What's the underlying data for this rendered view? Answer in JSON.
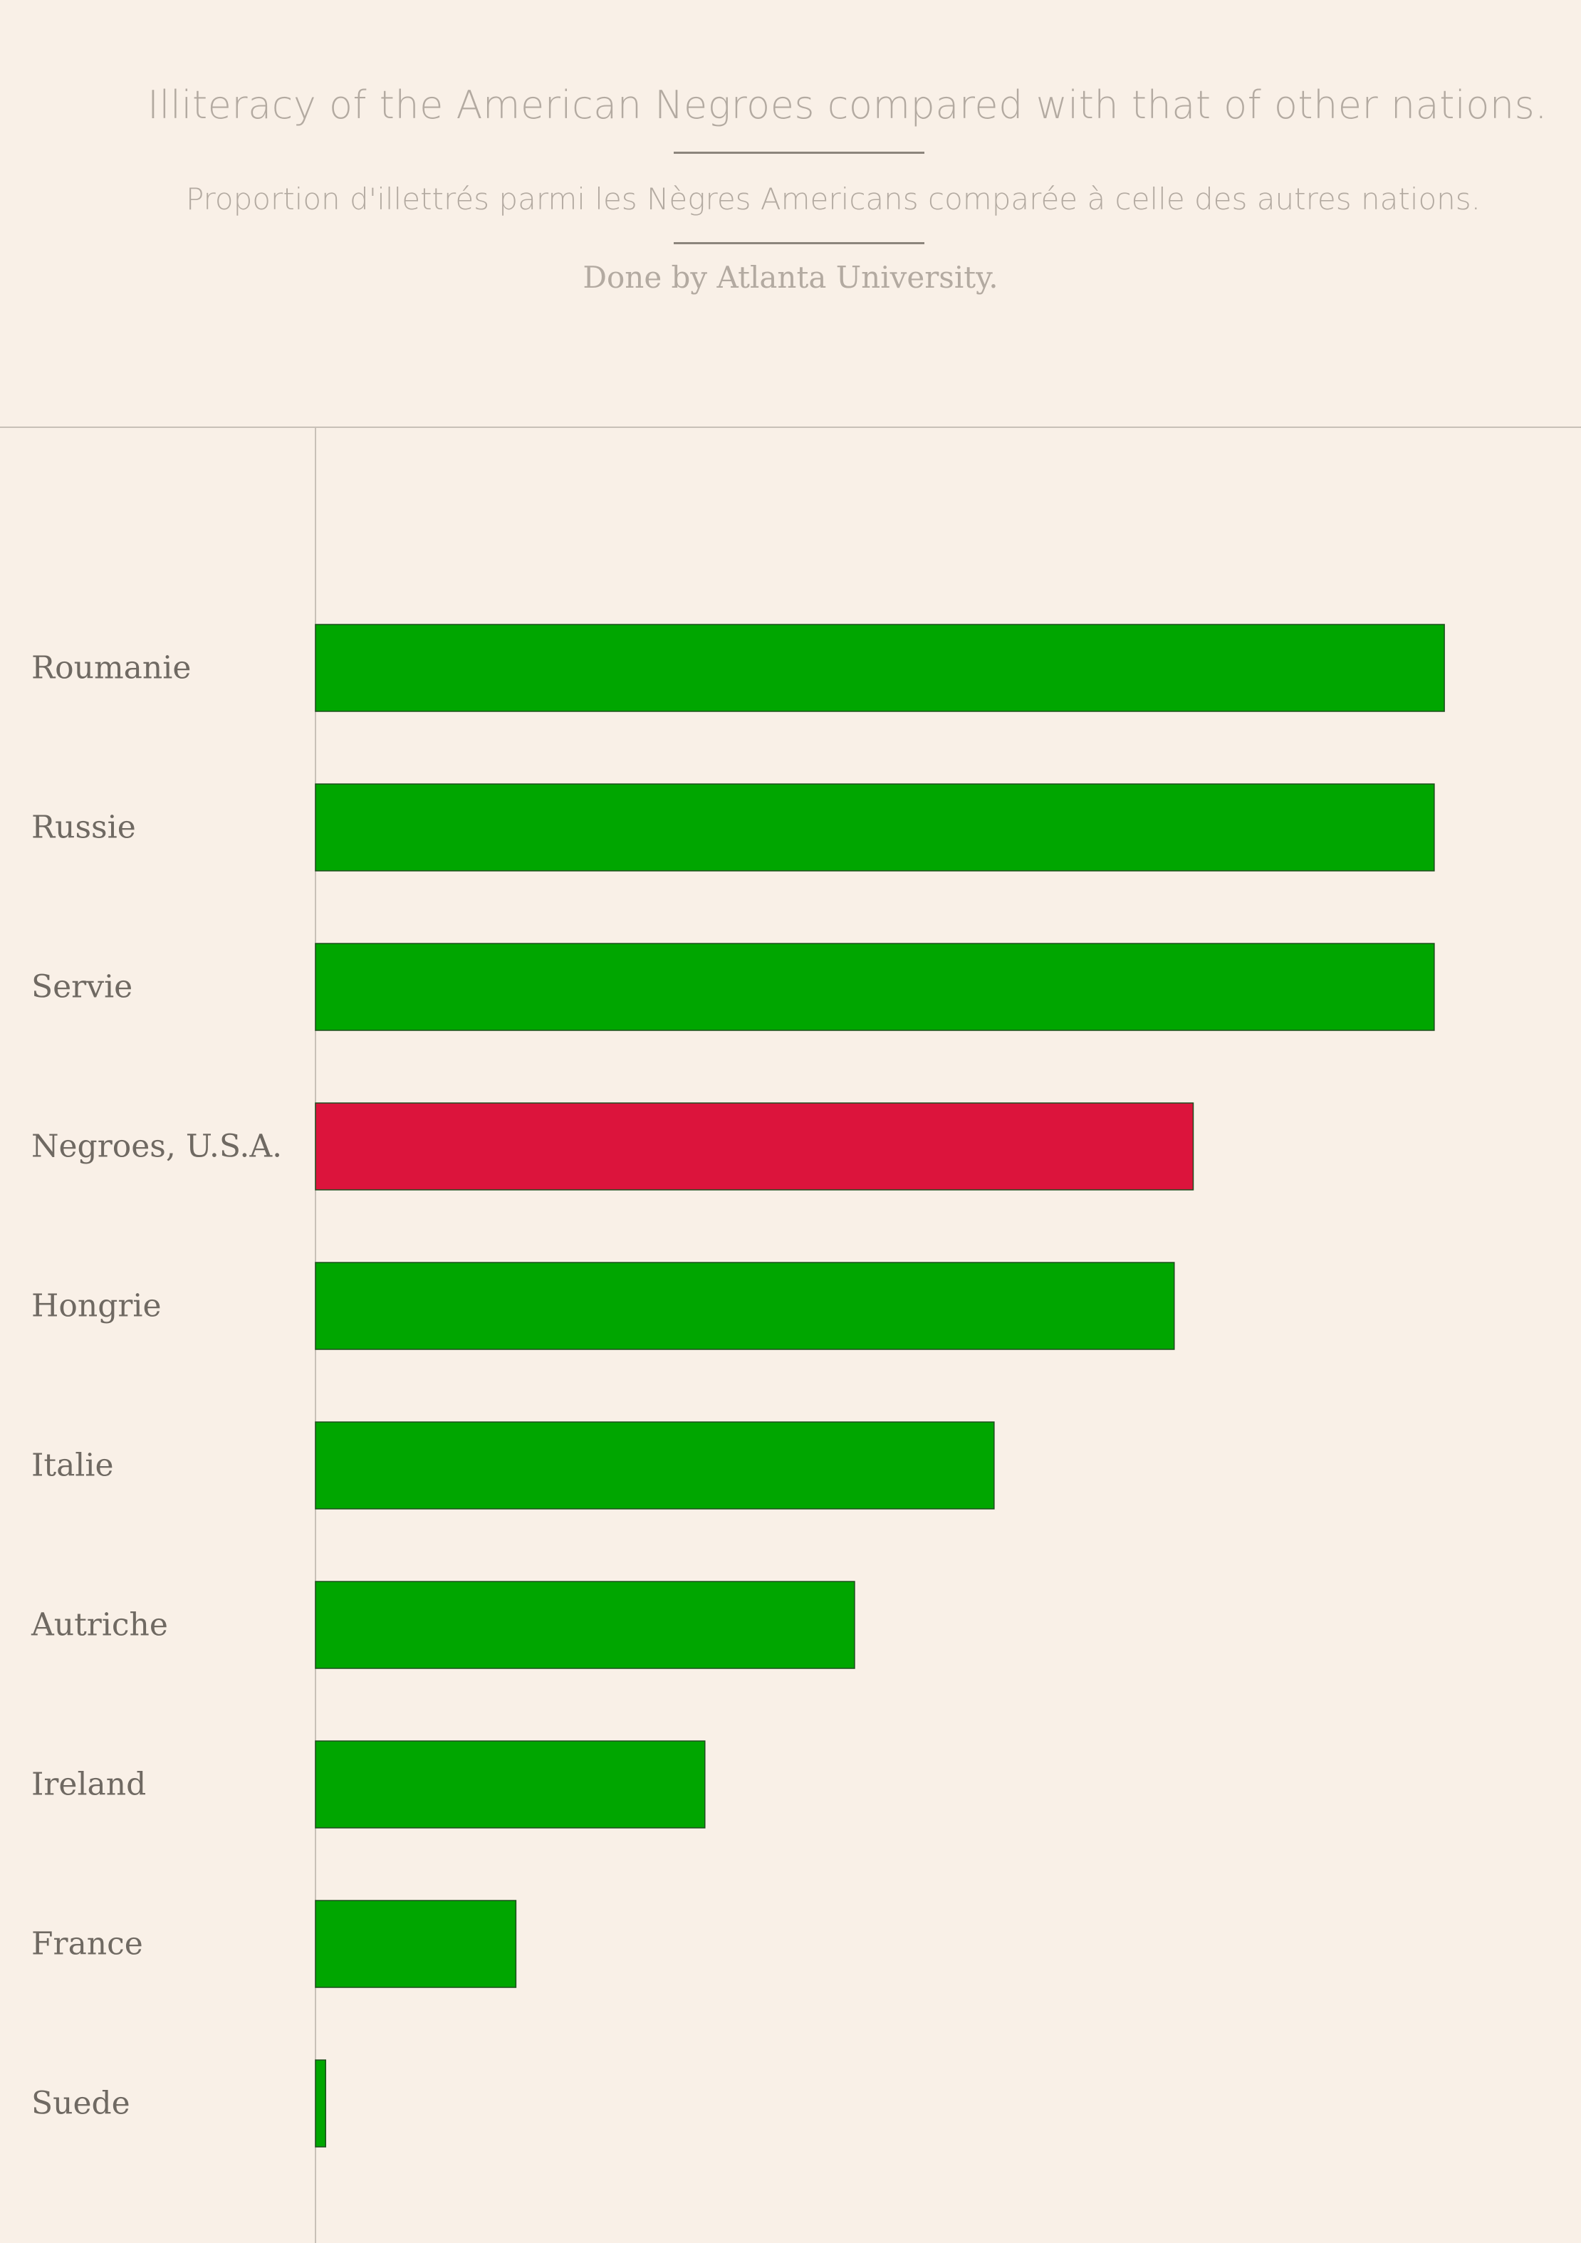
{
  "header": {
    "title": "Illiteracy of the American Negroes compared with that of other nations.",
    "subtitle": "Proportion d'illettrés parmi les Nègres Americans comparée à celle des autres nations.",
    "credit": "Done by Atlanta University."
  },
  "colors": {
    "background": "#f9f0e7",
    "bar_default": "#00a600",
    "bar_highlight": "#dc143c",
    "bar_stroke": "#1f4d1f",
    "text": "#6f6962",
    "title_text": "#b3aaa1"
  },
  "chart_data": {
    "type": "bar",
    "orientation": "horizontal",
    "title": "Illiteracy of the American Negroes compared with that of other nations.",
    "subtitle": "Proportion d'illettrés parmi les Nègres Americans comparée à celle des autres nations.",
    "xlabel": "",
    "ylabel": "",
    "xlim": [
      0,
      95
    ],
    "grid": false,
    "legend": "none",
    "highlight_category": "Negroes, U.S.A.",
    "categories": [
      "Roumanie",
      "Russie",
      "Servie",
      "Negroes, U.S.A.",
      "Hongrie",
      "Italie",
      "Autriche",
      "Ireland",
      "France",
      "Suede"
    ],
    "values": [
      89,
      88.2,
      88.2,
      69.2,
      67.7,
      53.5,
      42.5,
      30.7,
      15.8,
      0.8
    ]
  }
}
